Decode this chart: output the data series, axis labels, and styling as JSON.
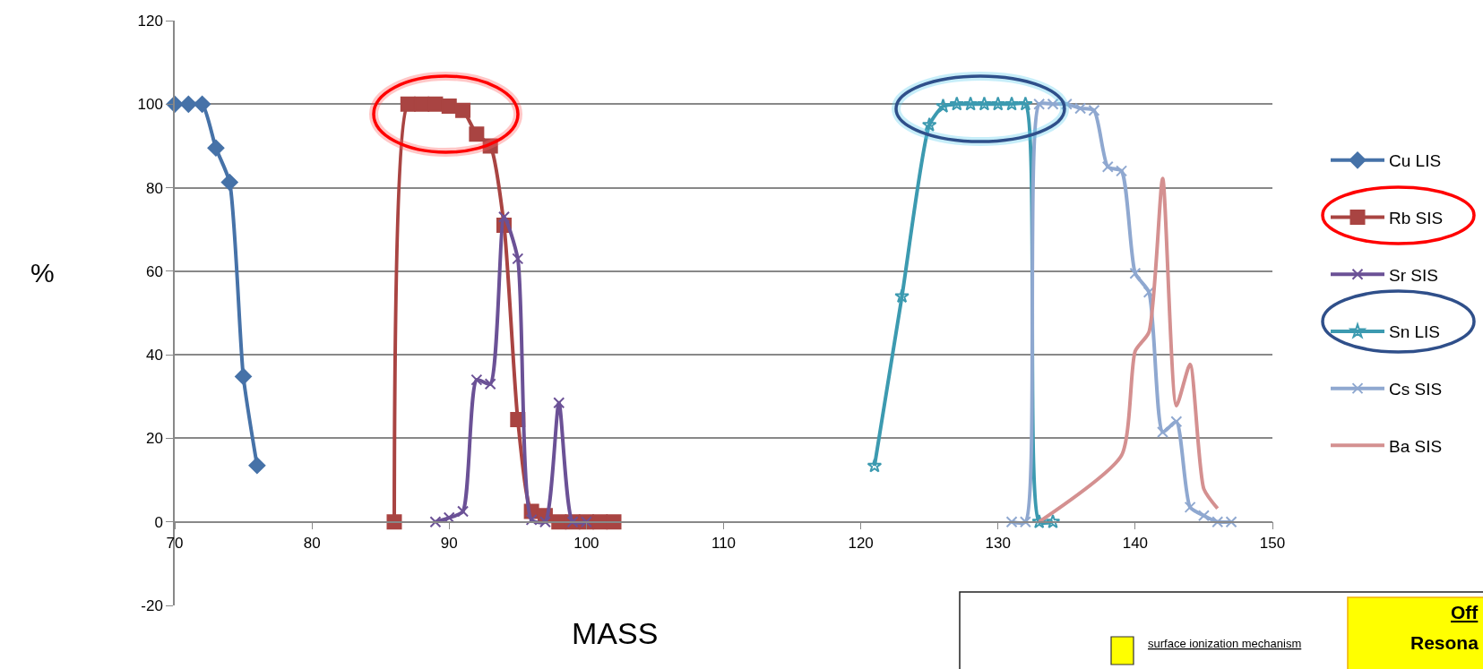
{
  "chart_data": {
    "type": "line",
    "xlabel": "MASS",
    "ylabel": "%",
    "xlim": [
      70,
      150
    ],
    "xticks": [
      70,
      80,
      90,
      100,
      110,
      120,
      130,
      140,
      150
    ],
    "ylim": [
      -20,
      120
    ],
    "yticks": [
      -20,
      0,
      20,
      40,
      60,
      80,
      100,
      120
    ],
    "grid": "y",
    "legend": "right",
    "series": [
      {
        "name": "Cu LIS",
        "color": "#4672a8",
        "marker": "diamond",
        "x": [
          70,
          71,
          72,
          73,
          74,
          75,
          76
        ],
        "values": [
          100,
          100,
          100,
          89.5,
          81.3,
          34.8,
          13.5
        ]
      },
      {
        "name": "Rb SIS",
        "color": "#a94442",
        "marker": "square",
        "x": [
          86,
          87,
          88,
          89,
          90,
          91,
          92,
          93,
          94,
          95,
          96,
          97,
          98,
          99,
          100,
          101,
          102
        ],
        "values": [
          0,
          100,
          100,
          100,
          99.5,
          98.5,
          92.8,
          90,
          71,
          24.5,
          2.5,
          1.5,
          0,
          0,
          0,
          0,
          0
        ]
      },
      {
        "name": "Sr SIS",
        "color": "#6b5196",
        "marker": "cross",
        "x": [
          89,
          90,
          91,
          92,
          93,
          94,
          95,
          96,
          97,
          98,
          99,
          100
        ],
        "values": [
          0,
          1,
          2.5,
          34,
          33,
          73,
          63,
          0.5,
          0,
          28.5,
          0,
          0
        ]
      },
      {
        "name": "Sn LIS",
        "color": "#3c9ab0",
        "marker": "star",
        "x": [
          121,
          123,
          125,
          126,
          127,
          128,
          129,
          130,
          131,
          132,
          133,
          134
        ],
        "values": [
          13.4,
          54,
          95,
          99.5,
          100,
          100,
          100,
          100,
          100,
          100,
          0,
          0
        ]
      },
      {
        "name": "Cs SIS",
        "color": "#8fa8d0",
        "marker": "cross",
        "x": [
          131,
          132,
          133,
          134,
          135,
          136,
          137,
          138,
          139,
          140,
          141,
          142,
          143,
          144,
          145,
          146,
          147
        ],
        "values": [
          0,
          0,
          100,
          100,
          100,
          99,
          98.5,
          85,
          84,
          59.5,
          55,
          21.5,
          24,
          3.5,
          1.5,
          0,
          0
        ]
      },
      {
        "name": "Ba SIS",
        "color": "#d49090",
        "marker": "none",
        "x": [
          133,
          139,
          140,
          141,
          142,
          143,
          144,
          145,
          146
        ],
        "values": [
          0,
          15.9,
          40.9,
          45.4,
          82.2,
          27.8,
          37.7,
          7.9,
          3.2
        ]
      }
    ],
    "annotations": [
      "surface ionization mechanism",
      "Off",
      "Resona"
    ]
  }
}
